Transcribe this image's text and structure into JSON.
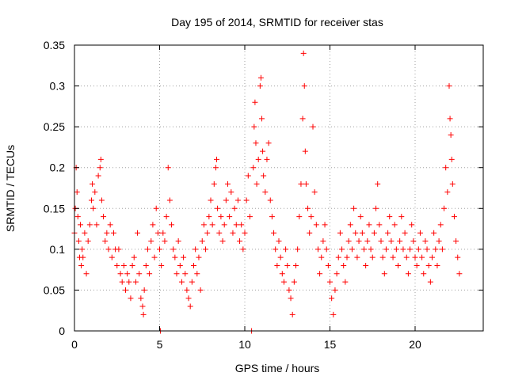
{
  "chart_data": {
    "type": "scatter",
    "title": "Day 195 of 2014, SRMTID for receiver stas",
    "xlabel": "GPS time / hours",
    "ylabel": "SRMTID / TECUs",
    "xlim": [
      0,
      24
    ],
    "ylim": [
      0,
      0.35
    ],
    "xticks": [
      0,
      5,
      10,
      15,
      20
    ],
    "xtick_labels": [
      "0",
      "5",
      "10",
      "15",
      "20"
    ],
    "yticks": [
      0,
      0.05,
      0.1,
      0.15,
      0.2,
      0.25,
      0.3,
      0.35
    ],
    "ytick_labels": [
      "0",
      "0.05",
      "0.1",
      "0.15",
      "0.2",
      "0.25",
      "0.3",
      "0.35"
    ],
    "grid": true,
    "marker": "+",
    "color": "#ff0000",
    "x_range_of_data": [
      0,
      22.6
    ],
    "series": [
      {
        "name": "SRMTID",
        "points": [
          [
            0.0,
            0.12
          ],
          [
            0.05,
            0.15
          ],
          [
            0.1,
            0.2
          ],
          [
            0.15,
            0.17
          ],
          [
            0.2,
            0.14
          ],
          [
            0.25,
            0.11
          ],
          [
            0.3,
            0.09
          ],
          [
            0.35,
            0.13
          ],
          [
            0.4,
            0.08
          ],
          [
            0.45,
            0.1
          ],
          [
            0.5,
            0.09
          ],
          [
            0.6,
            0.12
          ],
          [
            0.7,
            0.07
          ],
          [
            0.8,
            0.11
          ],
          [
            0.9,
            0.13
          ],
          [
            1.0,
            0.16
          ],
          [
            1.05,
            0.18
          ],
          [
            1.1,
            0.15
          ],
          [
            1.2,
            0.17
          ],
          [
            1.3,
            0.13
          ],
          [
            1.4,
            0.19
          ],
          [
            1.5,
            0.2
          ],
          [
            1.55,
            0.21
          ],
          [
            1.6,
            0.16
          ],
          [
            1.7,
            0.14
          ],
          [
            1.8,
            0.11
          ],
          [
            1.9,
            0.12
          ],
          [
            2.0,
            0.1
          ],
          [
            2.1,
            0.13
          ],
          [
            2.2,
            0.09
          ],
          [
            2.3,
            0.12
          ],
          [
            2.4,
            0.1
          ],
          [
            2.5,
            0.08
          ],
          [
            2.6,
            0.1
          ],
          [
            2.7,
            0.07
          ],
          [
            2.8,
            0.06
          ],
          [
            2.9,
            0.08
          ],
          [
            3.0,
            0.05
          ],
          [
            3.1,
            0.07
          ],
          [
            3.2,
            0.06
          ],
          [
            3.3,
            0.04
          ],
          [
            3.4,
            0.08
          ],
          [
            3.5,
            0.09
          ],
          [
            3.6,
            0.06
          ],
          [
            3.7,
            0.12
          ],
          [
            3.8,
            0.07
          ],
          [
            3.9,
            0.04
          ],
          [
            4.0,
            0.03
          ],
          [
            4.05,
            0.02
          ],
          [
            4.1,
            0.05
          ],
          [
            4.2,
            0.08
          ],
          [
            4.3,
            0.1
          ],
          [
            4.4,
            0.07
          ],
          [
            4.5,
            0.11
          ],
          [
            4.6,
            0.13
          ],
          [
            4.7,
            0.09
          ],
          [
            4.8,
            0.15
          ],
          [
            4.9,
            0.12
          ],
          [
            5.0,
            0.1
          ],
          [
            5.05,
            0.0
          ],
          [
            5.1,
            0.08
          ],
          [
            5.2,
            0.12
          ],
          [
            5.3,
            0.11
          ],
          [
            5.4,
            0.14
          ],
          [
            5.5,
            0.2
          ],
          [
            5.6,
            0.16
          ],
          [
            5.7,
            0.13
          ],
          [
            5.8,
            0.1
          ],
          [
            5.9,
            0.09
          ],
          [
            6.0,
            0.07
          ],
          [
            6.1,
            0.11
          ],
          [
            6.2,
            0.08
          ],
          [
            6.3,
            0.06
          ],
          [
            6.4,
            0.09
          ],
          [
            6.5,
            0.07
          ],
          [
            6.6,
            0.05
          ],
          [
            6.7,
            0.04
          ],
          [
            6.8,
            0.03
          ],
          [
            6.9,
            0.06
          ],
          [
            7.0,
            0.08
          ],
          [
            7.1,
            0.1
          ],
          [
            7.2,
            0.07
          ],
          [
            7.3,
            0.09
          ],
          [
            7.4,
            0.05
          ],
          [
            7.5,
            0.11
          ],
          [
            7.6,
            0.13
          ],
          [
            7.7,
            0.1
          ],
          [
            7.8,
            0.12
          ],
          [
            7.9,
            0.14
          ],
          [
            8.0,
            0.16
          ],
          [
            8.1,
            0.13
          ],
          [
            8.2,
            0.18
          ],
          [
            8.3,
            0.2
          ],
          [
            8.35,
            0.21
          ],
          [
            8.4,
            0.15
          ],
          [
            8.5,
            0.12
          ],
          [
            8.6,
            0.14
          ],
          [
            8.7,
            0.11
          ],
          [
            8.8,
            0.13
          ],
          [
            8.9,
            0.16
          ],
          [
            9.0,
            0.18
          ],
          [
            9.1,
            0.14
          ],
          [
            9.2,
            0.17
          ],
          [
            9.3,
            0.12
          ],
          [
            9.4,
            0.15
          ],
          [
            9.5,
            0.13
          ],
          [
            9.6,
            0.16
          ],
          [
            9.7,
            0.11
          ],
          [
            9.8,
            0.13
          ],
          [
            9.9,
            0.1
          ],
          [
            10.0,
            0.12
          ],
          [
            10.1,
            0.16
          ],
          [
            10.2,
            0.19
          ],
          [
            10.3,
            0.14
          ],
          [
            10.4,
            0.0
          ],
          [
            10.5,
            0.2
          ],
          [
            10.55,
            0.25
          ],
          [
            10.6,
            0.28
          ],
          [
            10.65,
            0.23
          ],
          [
            10.7,
            0.18
          ],
          [
            10.8,
            0.21
          ],
          [
            10.9,
            0.3
          ],
          [
            10.95,
            0.31
          ],
          [
            11.0,
            0.26
          ],
          [
            11.05,
            0.22
          ],
          [
            11.1,
            0.19
          ],
          [
            11.2,
            0.17
          ],
          [
            11.3,
            0.21
          ],
          [
            11.4,
            0.23
          ],
          [
            11.5,
            0.16
          ],
          [
            11.6,
            0.14
          ],
          [
            11.7,
            0.12
          ],
          [
            11.8,
            0.1
          ],
          [
            11.9,
            0.08
          ],
          [
            12.0,
            0.11
          ],
          [
            12.1,
            0.09
          ],
          [
            12.2,
            0.07
          ],
          [
            12.3,
            0.06
          ],
          [
            12.4,
            0.1
          ],
          [
            12.5,
            0.08
          ],
          [
            12.6,
            0.05
          ],
          [
            12.7,
            0.04
          ],
          [
            12.8,
            0.02
          ],
          [
            12.9,
            0.06
          ],
          [
            13.0,
            0.08
          ],
          [
            13.1,
            0.1
          ],
          [
            13.2,
            0.14
          ],
          [
            13.3,
            0.18
          ],
          [
            13.4,
            0.26
          ],
          [
            13.45,
            0.34
          ],
          [
            13.5,
            0.3
          ],
          [
            13.55,
            0.22
          ],
          [
            13.6,
            0.18
          ],
          [
            13.7,
            0.15
          ],
          [
            13.8,
            0.12
          ],
          [
            13.9,
            0.14
          ],
          [
            14.0,
            0.25
          ],
          [
            14.1,
            0.17
          ],
          [
            14.2,
            0.13
          ],
          [
            14.3,
            0.1
          ],
          [
            14.4,
            0.07
          ],
          [
            14.5,
            0.09
          ],
          [
            14.6,
            0.11
          ],
          [
            14.7,
            0.13
          ],
          [
            14.8,
            0.1
          ],
          [
            14.9,
            0.08
          ],
          [
            15.0,
            0.06
          ],
          [
            15.1,
            0.04
          ],
          [
            15.2,
            0.02
          ],
          [
            15.3,
            0.05
          ],
          [
            15.4,
            0.07
          ],
          [
            15.5,
            0.09
          ],
          [
            15.6,
            0.12
          ],
          [
            15.7,
            0.1
          ],
          [
            15.8,
            0.08
          ],
          [
            15.9,
            0.06
          ],
          [
            16.0,
            0.09
          ],
          [
            16.1,
            0.11
          ],
          [
            16.2,
            0.13
          ],
          [
            16.3,
            0.1
          ],
          [
            16.4,
            0.15
          ],
          [
            16.5,
            0.12
          ],
          [
            16.6,
            0.09
          ],
          [
            16.7,
            0.11
          ],
          [
            16.8,
            0.14
          ],
          [
            16.9,
            0.12
          ],
          [
            17.0,
            0.1
          ],
          [
            17.1,
            0.08
          ],
          [
            17.2,
            0.11
          ],
          [
            17.3,
            0.13
          ],
          [
            17.4,
            0.1
          ],
          [
            17.5,
            0.09
          ],
          [
            17.6,
            0.12
          ],
          [
            17.7,
            0.15
          ],
          [
            17.8,
            0.18
          ],
          [
            17.9,
            0.13
          ],
          [
            18.0,
            0.11
          ],
          [
            18.1,
            0.09
          ],
          [
            18.2,
            0.07
          ],
          [
            18.3,
            0.1
          ],
          [
            18.4,
            0.12
          ],
          [
            18.5,
            0.14
          ],
          [
            18.6,
            0.11
          ],
          [
            18.7,
            0.09
          ],
          [
            18.8,
            0.13
          ],
          [
            18.9,
            0.1
          ],
          [
            19.0,
            0.08
          ],
          [
            19.1,
            0.11
          ],
          [
            19.2,
            0.14
          ],
          [
            19.3,
            0.1
          ],
          [
            19.4,
            0.12
          ],
          [
            19.5,
            0.09
          ],
          [
            19.6,
            0.07
          ],
          [
            19.7,
            0.1
          ],
          [
            19.8,
            0.13
          ],
          [
            19.9,
            0.11
          ],
          [
            20.0,
            0.09
          ],
          [
            20.1,
            0.08
          ],
          [
            20.2,
            0.1
          ],
          [
            20.3,
            0.12
          ],
          [
            20.4,
            0.09
          ],
          [
            20.5,
            0.07
          ],
          [
            20.6,
            0.11
          ],
          [
            20.7,
            0.1
          ],
          [
            20.8,
            0.08
          ],
          [
            20.9,
            0.06
          ],
          [
            21.0,
            0.09
          ],
          [
            21.1,
            0.12
          ],
          [
            21.2,
            0.1
          ],
          [
            21.3,
            0.08
          ],
          [
            21.4,
            0.11
          ],
          [
            21.5,
            0.13
          ],
          [
            21.6,
            0.1
          ],
          [
            21.7,
            0.15
          ],
          [
            21.8,
            0.2
          ],
          [
            21.9,
            0.17
          ],
          [
            22.0,
            0.3
          ],
          [
            22.05,
            0.26
          ],
          [
            22.1,
            0.24
          ],
          [
            22.15,
            0.21
          ],
          [
            22.2,
            0.18
          ],
          [
            22.3,
            0.14
          ],
          [
            22.4,
            0.11
          ],
          [
            22.5,
            0.09
          ],
          [
            22.6,
            0.07
          ]
        ]
      }
    ]
  }
}
